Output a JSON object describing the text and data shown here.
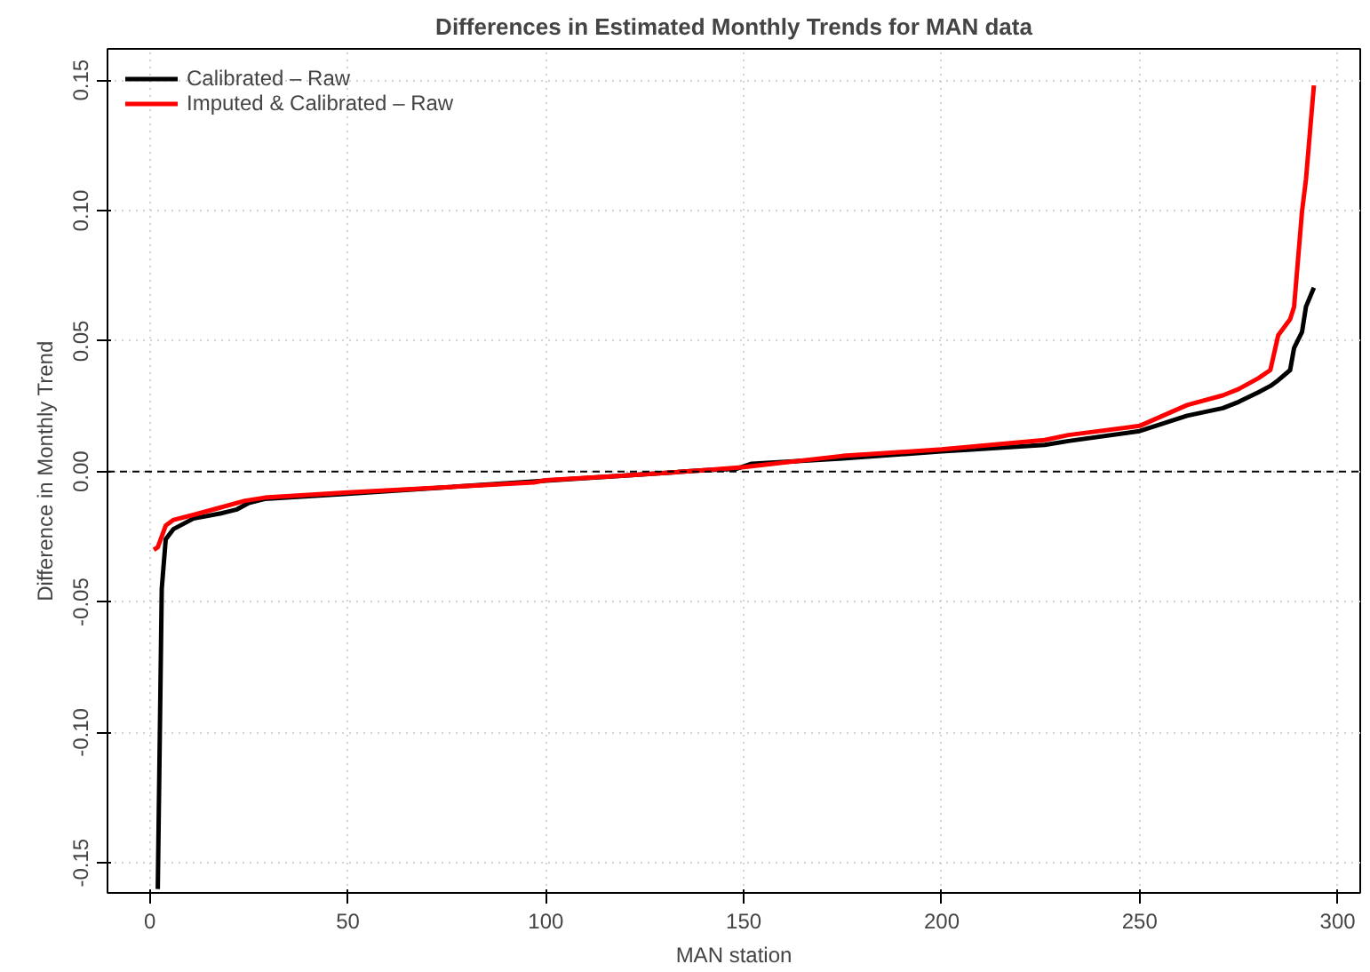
{
  "chart_data": {
    "type": "line",
    "title": "Differences in Estimated Monthly Trends for MAN data",
    "xlabel": "MAN station",
    "ylabel": "Difference in Monthly Trend",
    "xlim": [
      -10.7,
      305.7
    ],
    "ylim": [
      -0.1615,
      0.162
    ],
    "xticks": [
      0,
      50,
      100,
      150,
      200,
      250,
      300
    ],
    "yticks": [
      {
        "value": -0.15,
        "label": "-0.15"
      },
      {
        "value": -0.1,
        "label": "-0.10"
      },
      {
        "value": -0.05,
        "label": "-0.05"
      },
      {
        "value": 0,
        "label": "0.00"
      },
      {
        "value": 0.05,
        "label": "0.05"
      },
      {
        "value": 0.1,
        "label": "0.10"
      },
      {
        "value": 0.15,
        "label": "0.15"
      }
    ],
    "grid": true,
    "legend": "top left",
    "line_style": "solid",
    "marker": "none",
    "ref_lines": [
      {
        "axis": "y",
        "value": 0,
        "line_style": "dashed",
        "color": "#000000"
      }
    ],
    "series": [
      {
        "name": "Calibrated – Raw",
        "color": "#000000",
        "x": [
          2,
          3,
          4,
          6,
          11,
          18,
          22,
          25,
          29,
          50,
          100,
          120,
          140,
          148,
          152,
          175,
          200,
          226,
          232,
          250,
          262,
          271,
          275,
          280,
          283,
          285,
          288,
          289,
          291,
          292,
          294
        ],
        "values": [
          -0.16,
          -0.045,
          -0.026,
          -0.022,
          -0.018,
          -0.016,
          -0.0145,
          -0.012,
          -0.0105,
          -0.0085,
          -0.0035,
          -0.0015,
          0.0005,
          0.001,
          0.003,
          0.005,
          0.0077,
          0.0102,
          0.0117,
          0.0155,
          0.0214,
          0.0243,
          0.0267,
          0.0304,
          0.0328,
          0.035,
          0.0389,
          0.0474,
          0.0535,
          0.0632,
          0.0705
        ]
      },
      {
        "name": "Imputed & Calibrated – Raw",
        "color": "#ff0000",
        "x": [
          1,
          2,
          4,
          6,
          11,
          18,
          24,
          29,
          50,
          97,
          100,
          120,
          140,
          150,
          175,
          200,
          226,
          232,
          250,
          262,
          271,
          275,
          280,
          283,
          285,
          288,
          289,
          291,
          292,
          294
        ],
        "values": [
          -0.03,
          -0.029,
          -0.0207,
          -0.0185,
          -0.0166,
          -0.0137,
          -0.0112,
          -0.01,
          -0.008,
          -0.0042,
          -0.0033,
          -0.0015,
          0.0005,
          0.0017,
          0.006,
          0.0085,
          0.0121,
          0.014,
          0.0175,
          0.0255,
          0.0292,
          0.0316,
          0.0358,
          0.0389,
          0.0523,
          0.0584,
          0.0632,
          0.0997,
          0.112,
          0.148
        ]
      }
    ]
  }
}
